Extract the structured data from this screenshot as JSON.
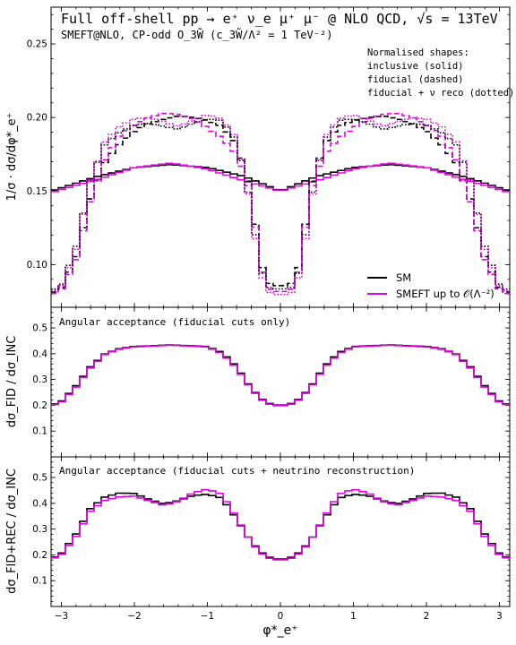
{
  "header": {
    "title": "Full off-shell pp → e⁺ ν_e μ⁺ μ⁻ @ NLO QCD, √s = 13TeV",
    "subtitle": "SMEFT@NLO, CP-odd O_3W̃ (c_3W̃/Λ² = 1 TeV⁻²)"
  },
  "legend": {
    "note_lines": [
      "Normalised shapes:",
      "inclusive (solid)",
      "fiducial (dashed)",
      "fiducial + ν reco (dotted)"
    ],
    "entries": [
      {
        "label": "SM",
        "color": "#000000"
      },
      {
        "label": "SMEFT up to 𝒪(Λ⁻²)",
        "color": "#e600e6"
      }
    ]
  },
  "axes": {
    "xlabel": "φ*_e⁺",
    "xticks": [
      "−3",
      "−2",
      "−1",
      "0",
      "1",
      "2",
      "3"
    ],
    "panel1": {
      "ylabel": "1/σ · dσ/dφ*_e⁺",
      "yticks": [
        "0.10",
        "0.15",
        "0.20",
        "0.25"
      ]
    },
    "panel2": {
      "ylabel": "dσ_FID / dσ_INC",
      "yticks": [
        "0.1",
        "0.2",
        "0.3",
        "0.4",
        "0.5"
      ],
      "note": "Angular acceptance (fiducial cuts only)"
    },
    "panel3": {
      "ylabel": "dσ_FID+REC / dσ_INC",
      "yticks": [
        "0.1",
        "0.2",
        "0.3",
        "0.4",
        "0.5"
      ],
      "note": "Angular acceptance (fiducial cuts + neutrino reconstruction)"
    }
  },
  "chart_data": [
    {
      "type": "line",
      "panel": "normalised shapes",
      "xlim": [
        -3.14159,
        3.14159
      ],
      "ylim": [
        0.071,
        0.275
      ],
      "grid": false,
      "legend_position": "bottom-right",
      "series": [
        {
          "name": "SM",
          "style": "solid",
          "color": "#000000",
          "x": [
            -3.14,
            -2.5,
            -2.0,
            -1.5,
            -1.0,
            -0.5,
            0.0,
            0.5,
            1.0,
            1.5,
            2.0,
            2.5,
            3.14
          ],
          "y": [
            0.15,
            0.16,
            0.166,
            0.168,
            0.166,
            0.16,
            0.15,
            0.16,
            0.166,
            0.168,
            0.166,
            0.16,
            0.15
          ]
        },
        {
          "name": "SMEFT up to 𝒪(Λ⁻²)",
          "style": "solid",
          "color": "#e600e6",
          "x": [
            -3.14,
            -2.5,
            -2.0,
            -1.5,
            -1.0,
            -0.5,
            0.0,
            0.5,
            1.0,
            1.5,
            2.0,
            2.5,
            3.14
          ],
          "y": [
            0.149,
            0.158,
            0.166,
            0.169,
            0.165,
            0.157,
            0.15,
            0.157,
            0.165,
            0.169,
            0.166,
            0.158,
            0.149
          ]
        },
        {
          "name": "SM",
          "style": "dashed",
          "color": "#000000",
          "x": [
            -3.14,
            -3.0,
            -2.8,
            -2.6,
            -2.4,
            -2.2,
            -2.0,
            -1.8,
            -1.6,
            -1.4,
            -1.2,
            -1.0,
            -0.8,
            -0.6,
            -0.4,
            -0.3,
            -0.2,
            0.0,
            0.2,
            0.3,
            0.4,
            0.6,
            0.8,
            1.0,
            1.2,
            1.4,
            1.6,
            1.8,
            2.0,
            2.2,
            2.4,
            2.6,
            2.8,
            3.0,
            3.14
          ],
          "y": [
            0.08,
            0.084,
            0.105,
            0.145,
            0.17,
            0.182,
            0.191,
            0.196,
            0.199,
            0.201,
            0.2,
            0.198,
            0.194,
            0.182,
            0.15,
            0.11,
            0.088,
            0.085,
            0.088,
            0.11,
            0.15,
            0.182,
            0.194,
            0.198,
            0.2,
            0.201,
            0.199,
            0.196,
            0.191,
            0.182,
            0.17,
            0.145,
            0.105,
            0.084,
            0.08
          ]
        },
        {
          "name": "SMEFT up to 𝒪(Λ⁻²)",
          "style": "dashed",
          "color": "#e600e6",
          "x": [
            -3.14,
            -3.0,
            -2.8,
            -2.6,
            -2.4,
            -2.2,
            -2.0,
            -1.8,
            -1.6,
            -1.4,
            -1.2,
            -1.0,
            -0.8,
            -0.6,
            -0.4,
            -0.3,
            -0.2,
            0.0,
            0.2,
            0.3,
            0.4,
            0.6,
            0.8,
            1.0,
            1.2,
            1.4,
            1.6,
            1.8,
            2.0,
            2.2,
            2.4,
            2.6,
            2.8,
            3.0,
            3.14
          ],
          "y": [
            0.079,
            0.083,
            0.103,
            0.143,
            0.172,
            0.188,
            0.195,
            0.2,
            0.203,
            0.202,
            0.199,
            0.193,
            0.186,
            0.175,
            0.148,
            0.108,
            0.084,
            0.081,
            0.084,
            0.108,
            0.148,
            0.175,
            0.186,
            0.193,
            0.199,
            0.202,
            0.203,
            0.2,
            0.195,
            0.188,
            0.172,
            0.143,
            0.103,
            0.083,
            0.079
          ]
        },
        {
          "name": "SM",
          "style": "dotted",
          "color": "#000000",
          "x": [
            -3.14,
            -3.0,
            -2.8,
            -2.6,
            -2.4,
            -2.2,
            -2.0,
            -1.8,
            -1.6,
            -1.4,
            -1.2,
            -1.0,
            -0.8,
            -0.6,
            -0.4,
            -0.3,
            -0.2,
            0.0,
            0.2,
            0.3,
            0.4,
            0.6,
            0.8,
            1.0,
            1.2,
            1.4,
            1.6,
            1.8,
            2.0,
            2.2,
            2.4,
            2.6,
            2.8,
            3.0,
            3.14
          ],
          "y": [
            0.082,
            0.086,
            0.112,
            0.158,
            0.182,
            0.19,
            0.195,
            0.196,
            0.194,
            0.192,
            0.196,
            0.199,
            0.198,
            0.184,
            0.14,
            0.105,
            0.085,
            0.083,
            0.085,
            0.105,
            0.14,
            0.184,
            0.198,
            0.199,
            0.196,
            0.192,
            0.194,
            0.196,
            0.195,
            0.19,
            0.182,
            0.158,
            0.112,
            0.086,
            0.082
          ]
        },
        {
          "name": "SMEFT up to 𝒪(Λ⁻²)",
          "style": "dotted",
          "color": "#e600e6",
          "x": [
            -3.14,
            -3.0,
            -2.8,
            -2.6,
            -2.4,
            -2.2,
            -2.0,
            -1.8,
            -1.6,
            -1.4,
            -1.2,
            -1.0,
            -0.8,
            -0.6,
            -0.4,
            -0.3,
            -0.2,
            0.0,
            0.2,
            0.3,
            0.4,
            0.6,
            0.8,
            1.0,
            1.2,
            1.4,
            1.6,
            1.8,
            2.0,
            2.2,
            2.4,
            2.6,
            2.8,
            3.0,
            3.14
          ],
          "y": [
            0.081,
            0.085,
            0.11,
            0.158,
            0.184,
            0.194,
            0.199,
            0.2,
            0.197,
            0.194,
            0.198,
            0.202,
            0.199,
            0.186,
            0.138,
            0.102,
            0.082,
            0.079,
            0.082,
            0.102,
            0.138,
            0.186,
            0.199,
            0.202,
            0.198,
            0.194,
            0.197,
            0.2,
            0.199,
            0.194,
            0.184,
            0.158,
            0.11,
            0.085,
            0.081
          ]
        }
      ]
    },
    {
      "type": "line",
      "panel": "angular acceptance (fiducial cuts only)",
      "xlim": [
        -3.14159,
        3.14159
      ],
      "ylim": [
        0.0,
        0.58
      ],
      "grid": false,
      "series": [
        {
          "name": "SM",
          "style": "solid",
          "color": "#000000",
          "x": [
            -3.14,
            -3.0,
            -2.8,
            -2.6,
            -2.4,
            -2.2,
            -2.0,
            -1.5,
            -1.0,
            -0.8,
            -0.6,
            -0.4,
            -0.2,
            0.0,
            0.2,
            0.4,
            0.6,
            0.8,
            1.0,
            1.5,
            2.0,
            2.2,
            2.4,
            2.6,
            2.8,
            3.0,
            3.14
          ],
          "y": [
            0.2,
            0.215,
            0.275,
            0.35,
            0.4,
            0.42,
            0.428,
            0.434,
            0.428,
            0.405,
            0.35,
            0.265,
            0.21,
            0.198,
            0.21,
            0.265,
            0.35,
            0.405,
            0.428,
            0.434,
            0.428,
            0.42,
            0.4,
            0.35,
            0.275,
            0.215,
            0.2
          ]
        },
        {
          "name": "SMEFT up to 𝒪(Λ⁻²)",
          "style": "solid",
          "color": "#e600e6",
          "x": [
            -3.14,
            -3.0,
            -2.8,
            -2.6,
            -2.4,
            -2.2,
            -2.0,
            -1.5,
            -1.0,
            -0.8,
            -0.6,
            -0.4,
            -0.2,
            0.0,
            0.2,
            0.4,
            0.6,
            0.8,
            1.0,
            1.5,
            2.0,
            2.2,
            2.4,
            2.6,
            2.8,
            3.0,
            3.14
          ],
          "y": [
            0.198,
            0.212,
            0.27,
            0.345,
            0.398,
            0.418,
            0.426,
            0.433,
            0.426,
            0.4,
            0.345,
            0.262,
            0.207,
            0.196,
            0.207,
            0.262,
            0.345,
            0.4,
            0.426,
            0.433,
            0.426,
            0.418,
            0.398,
            0.345,
            0.27,
            0.212,
            0.198
          ]
        }
      ]
    },
    {
      "type": "line",
      "panel": "angular acceptance (fiducial cuts + neutrino reconstruction)",
      "xlim": [
        -3.14159,
        3.14159
      ],
      "ylim": [
        0.0,
        0.58
      ],
      "grid": false,
      "series": [
        {
          "name": "SM",
          "style": "solid",
          "color": "#000000",
          "x": [
            -3.14,
            -3.0,
            -2.8,
            -2.6,
            -2.4,
            -2.2,
            -2.0,
            -1.8,
            -1.6,
            -1.4,
            -1.2,
            -1.0,
            -0.8,
            -0.6,
            -0.4,
            -0.2,
            0.0,
            0.2,
            0.4,
            0.6,
            0.8,
            1.0,
            1.2,
            1.4,
            1.6,
            1.8,
            2.0,
            2.2,
            2.4,
            2.6,
            2.8,
            3.0,
            3.14
          ],
          "y": [
            0.185,
            0.205,
            0.28,
            0.38,
            0.425,
            0.44,
            0.438,
            0.415,
            0.398,
            0.41,
            0.43,
            0.435,
            0.42,
            0.34,
            0.25,
            0.195,
            0.18,
            0.195,
            0.25,
            0.34,
            0.42,
            0.435,
            0.43,
            0.41,
            0.398,
            0.415,
            0.438,
            0.44,
            0.425,
            0.38,
            0.28,
            0.205,
            0.185
          ]
        },
        {
          "name": "SMEFT up to 𝒪(Λ⁻²)",
          "style": "solid",
          "color": "#e600e6",
          "x": [
            -3.14,
            -3.0,
            -2.8,
            -2.6,
            -2.4,
            -2.2,
            -2.0,
            -1.8,
            -1.6,
            -1.4,
            -1.2,
            -1.0,
            -0.8,
            -0.6,
            -0.4,
            -0.2,
            0.0,
            0.2,
            0.4,
            0.6,
            0.8,
            1.0,
            1.2,
            1.4,
            1.6,
            1.8,
            2.0,
            2.2,
            2.4,
            2.6,
            2.8,
            3.0,
            3.14
          ],
          "y": [
            0.183,
            0.2,
            0.27,
            0.37,
            0.412,
            0.425,
            0.428,
            0.41,
            0.392,
            0.408,
            0.44,
            0.455,
            0.435,
            0.345,
            0.248,
            0.19,
            0.178,
            0.19,
            0.248,
            0.345,
            0.435,
            0.455,
            0.44,
            0.408,
            0.392,
            0.41,
            0.428,
            0.425,
            0.412,
            0.37,
            0.27,
            0.2,
            0.183
          ]
        }
      ]
    }
  ]
}
